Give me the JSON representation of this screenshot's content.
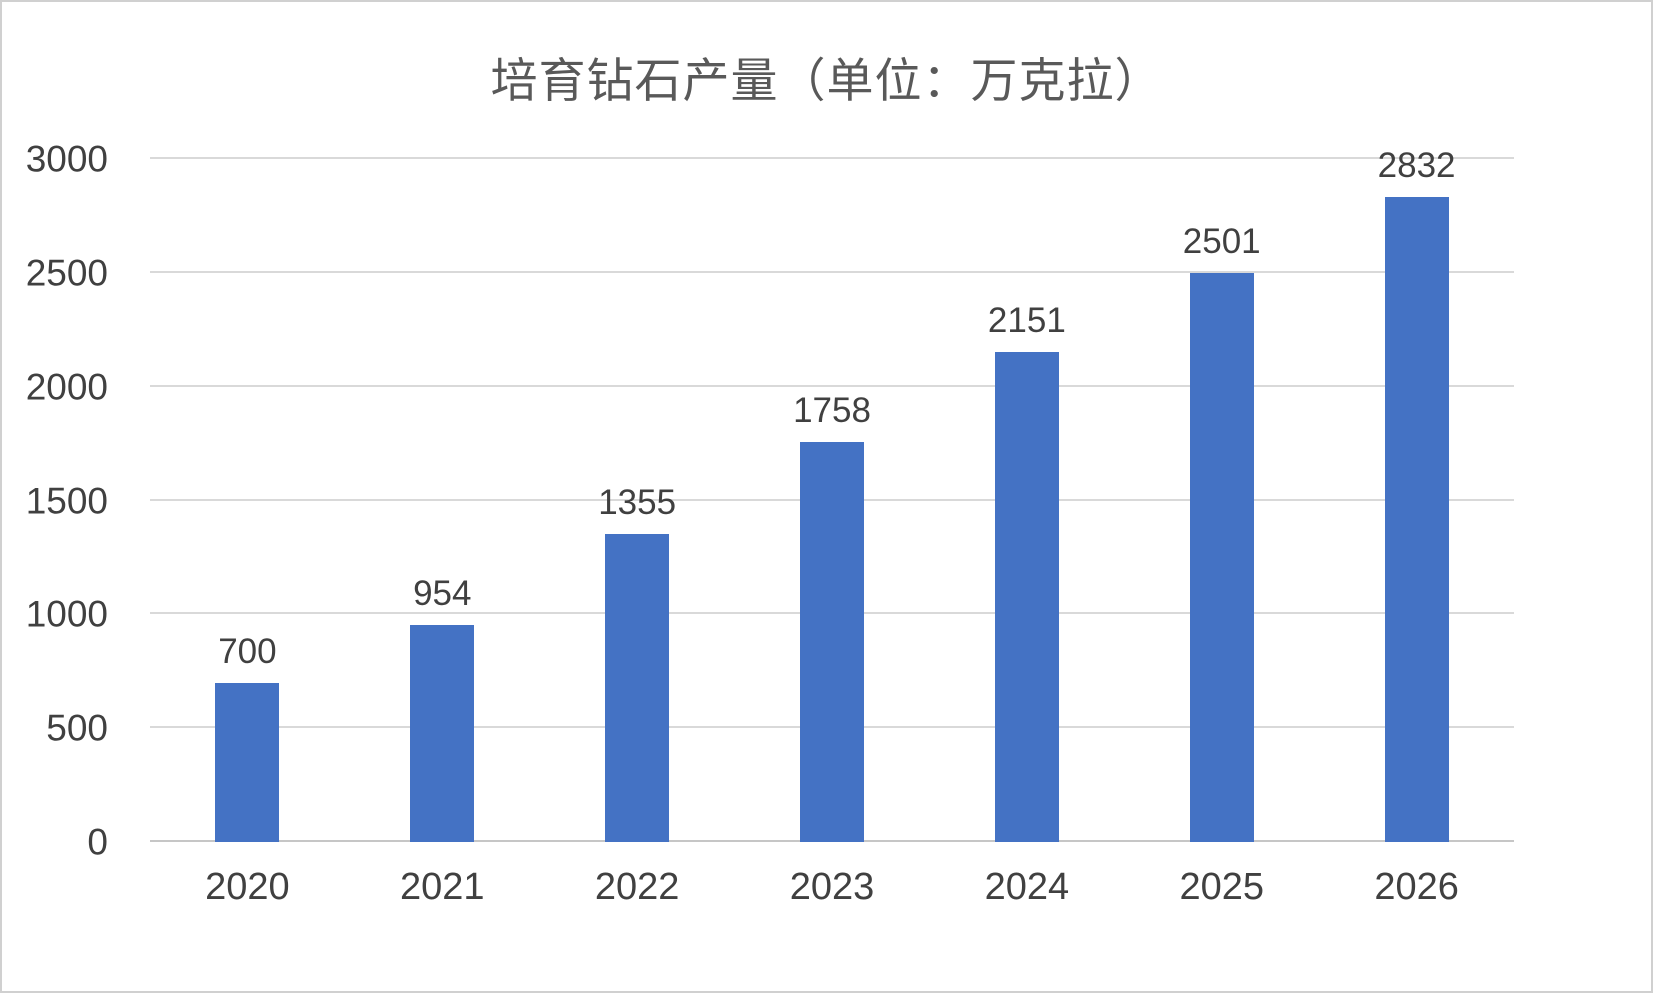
{
  "chart_data": {
    "type": "bar",
    "title": "培育钻石产量（单位：万克拉）",
    "categories": [
      "2020",
      "2021",
      "2022",
      "2023",
      "2024",
      "2025",
      "2026"
    ],
    "values": [
      700,
      954,
      1355,
      1758,
      2151,
      2501,
      2832
    ],
    "xlabel": "",
    "ylabel": "",
    "ylim": [
      0,
      3000
    ],
    "yticks": [
      0,
      500,
      1000,
      1500,
      2000,
      2500,
      3000
    ],
    "grid": true,
    "legend_position": "none",
    "bar_color": "#4472C4",
    "gridline_color": "#d9d9d9",
    "label_color": "#404040",
    "title_color": "#595959"
  }
}
